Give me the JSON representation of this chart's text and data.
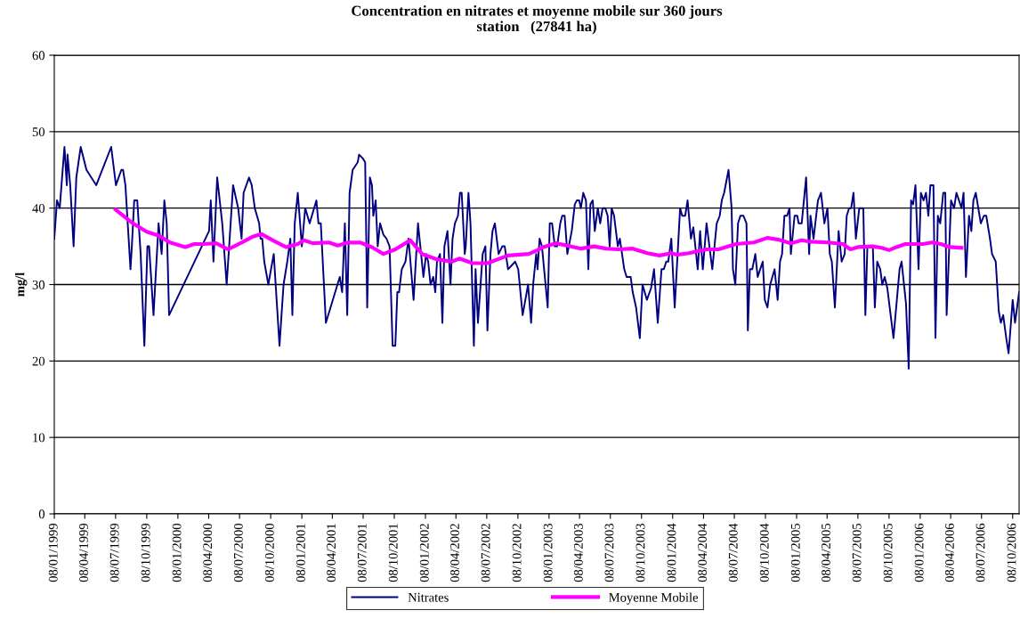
{
  "chart_data": {
    "type": "line",
    "title": "Concentration en nitrates et moyenne mobile sur 360 jours\nstation   (27841 ha)",
    "ylabel": "mg/l",
    "xlim": [
      "1999-01-08",
      "2006-10-27"
    ],
    "ylim": [
      0,
      60
    ],
    "yticks": [
      0,
      10,
      20,
      30,
      40,
      50,
      60
    ],
    "xticks": [
      {
        "value": "1999-01-08",
        "label": "08/01/1999"
      },
      {
        "value": "1999-04-08",
        "label": "08/04/1999"
      },
      {
        "value": "1999-07-08",
        "label": "08/07/1999"
      },
      {
        "value": "1999-10-08",
        "label": "08/10/1999"
      },
      {
        "value": "2000-01-08",
        "label": "08/01/2000"
      },
      {
        "value": "2000-04-08",
        "label": "08/04/2000"
      },
      {
        "value": "2000-07-08",
        "label": "08/07/2000"
      },
      {
        "value": "2000-10-08",
        "label": "08/10/2000"
      },
      {
        "value": "2001-01-08",
        "label": "08/01/2001"
      },
      {
        "value": "2001-04-08",
        "label": "08/04/2001"
      },
      {
        "value": "2001-07-08",
        "label": "08/07/2001"
      },
      {
        "value": "2001-10-08",
        "label": "08/10/2001"
      },
      {
        "value": "2002-01-08",
        "label": "08/01/2002"
      },
      {
        "value": "2002-04-08",
        "label": "08/04/2002"
      },
      {
        "value": "2002-07-08",
        "label": "08/07/2002"
      },
      {
        "value": "2002-10-08",
        "label": "08/10/2002"
      },
      {
        "value": "2003-01-08",
        "label": "08/01/2003"
      },
      {
        "value": "2003-04-08",
        "label": "08/04/2003"
      },
      {
        "value": "2003-07-08",
        "label": "08/07/2003"
      },
      {
        "value": "2003-10-08",
        "label": "08/10/2003"
      },
      {
        "value": "2004-01-08",
        "label": "08/01/2004"
      },
      {
        "value": "2004-04-08",
        "label": "08/04/2004"
      },
      {
        "value": "2004-07-08",
        "label": "08/07/2004"
      },
      {
        "value": "2004-10-08",
        "label": "08/10/2004"
      },
      {
        "value": "2005-01-08",
        "label": "08/01/2005"
      },
      {
        "value": "2005-04-08",
        "label": "08/04/2005"
      },
      {
        "value": "2005-07-08",
        "label": "08/07/2005"
      },
      {
        "value": "2005-10-08",
        "label": "08/10/2005"
      },
      {
        "value": "2006-01-08",
        "label": "08/01/2006"
      },
      {
        "value": "2006-04-08",
        "label": "08/04/2006"
      },
      {
        "value": "2006-07-08",
        "label": "08/07/2006"
      },
      {
        "value": "2006-10-08",
        "label": "08/10/2006"
      }
    ],
    "grid": "y",
    "legend": "bottom",
    "marker": "none",
    "line_style": "solid",
    "series": [
      {
        "name": "Nitrates",
        "color": "#000080",
        "x": [
          "1999-01-08",
          "1999-01-16",
          "1999-01-24",
          "1999-02-07",
          "1999-02-14",
          "1999-02-16",
          "1999-02-24",
          "1999-03-06",
          "1999-03-14",
          "1999-03-27",
          "1999-04-13",
          "1999-05-12",
          "1999-06-25",
          "1999-07-09",
          "1999-07-25",
          "1999-07-30",
          "1999-08-06",
          "1999-08-21",
          "1999-08-25",
          "1999-09-01",
          "1999-09-10",
          "1999-09-20",
          "1999-10-01",
          "1999-10-10",
          "1999-10-15",
          "1999-10-28",
          "1999-11-12",
          "1999-11-21",
          "1999-11-29",
          "1999-12-06",
          "1999-12-13",
          "2000-04-09",
          "2000-04-14",
          "2000-04-22",
          "2000-05-03",
          "2000-05-18",
          "2000-05-31",
          "2000-06-19",
          "2000-07-04",
          "2000-07-14",
          "2000-07-20",
          "2000-08-05",
          "2000-08-13",
          "2000-08-22",
          "2000-09-04",
          "2000-09-08",
          "2000-09-13",
          "2000-09-19",
          "2000-10-01",
          "2000-10-17",
          "2000-11-03",
          "2000-11-15",
          "2000-11-26",
          "2000-12-05",
          "2000-12-11",
          "2000-12-18",
          "2000-12-27",
          "2001-01-08",
          "2001-01-18",
          "2001-01-31",
          "2001-02-20",
          "2001-02-26",
          "2001-03-05",
          "2001-03-20",
          "2001-04-30",
          "2001-05-07",
          "2001-05-15",
          "2001-05-22",
          "2001-05-29",
          "2001-06-07",
          "2001-06-22",
          "2001-06-26",
          "2001-07-07",
          "2001-07-14",
          "2001-07-20",
          "2001-07-28",
          "2001-08-03",
          "2001-08-07",
          "2001-08-14",
          "2001-08-20",
          "2001-08-27",
          "2001-09-06",
          "2001-09-15",
          "2001-09-24",
          "2001-10-03",
          "2001-10-11",
          "2001-10-17",
          "2001-10-22",
          "2001-10-30",
          "2001-11-10",
          "2001-11-19",
          "2001-12-04",
          "2001-12-17",
          "2002-01-02",
          "2002-01-10",
          "2002-01-16",
          "2002-01-23",
          "2002-01-31",
          "2002-02-06",
          "2002-02-11",
          "2002-02-20",
          "2002-02-27",
          "2002-03-05",
          "2002-03-14",
          "2002-03-23",
          "2002-03-29",
          "2002-04-05",
          "2002-04-14",
          "2002-04-20",
          "2002-04-25",
          "2002-05-04",
          "2002-05-07",
          "2002-05-15",
          "2002-05-21",
          "2002-05-31",
          "2002-06-05",
          "2002-06-12",
          "2002-06-26",
          "2002-07-04",
          "2002-07-10",
          "2002-07-19",
          "2002-07-25",
          "2002-08-01",
          "2002-08-12",
          "2002-08-23",
          "2002-08-30",
          "2002-09-09",
          "2002-09-30",
          "2002-10-09",
          "2002-10-22",
          "2002-11-07",
          "2002-11-16",
          "2002-11-22",
          "2002-12-01",
          "2002-12-05",
          "2002-12-11",
          "2002-12-18",
          "2003-01-04",
          "2003-01-10",
          "2003-01-17",
          "2003-01-25",
          "2003-02-01",
          "2003-02-10",
          "2003-02-16",
          "2003-02-23",
          "2003-03-03",
          "2003-03-16",
          "2003-03-25",
          "2003-03-31",
          "2003-04-07",
          "2003-04-12",
          "2003-04-19",
          "2003-04-27",
          "2003-05-04",
          "2003-05-10",
          "2003-05-17",
          "2003-05-23",
          "2003-06-01",
          "2003-06-08",
          "2003-06-15",
          "2003-06-23",
          "2003-06-30",
          "2003-07-06",
          "2003-07-12",
          "2003-07-19",
          "2003-07-30",
          "2003-08-05",
          "2003-08-18",
          "2003-08-25",
          "2003-09-06",
          "2003-09-12",
          "2003-09-22",
          "2003-10-03",
          "2003-10-11",
          "2003-10-24",
          "2003-11-05",
          "2003-11-14",
          "2003-11-25",
          "2003-12-06",
          "2003-12-13",
          "2003-12-20",
          "2003-12-26",
          "2004-01-04",
          "2004-01-14",
          "2004-01-30",
          "2004-02-05",
          "2004-02-14",
          "2004-02-21",
          "2004-03-02",
          "2004-03-09",
          "2004-03-22",
          "2004-03-29",
          "2004-04-06",
          "2004-04-17",
          "2004-05-04",
          "2004-05-17",
          "2004-05-26",
          "2004-06-01",
          "2004-06-08",
          "2004-06-21",
          "2004-06-30",
          "2004-07-04",
          "2004-07-11",
          "2004-07-19",
          "2004-07-26",
          "2004-08-04",
          "2004-08-13",
          "2004-08-17",
          "2004-08-23",
          "2004-08-30",
          "2004-09-08",
          "2004-09-15",
          "2004-09-30",
          "2004-10-06",
          "2004-10-14",
          "2004-10-22",
          "2004-11-04",
          "2004-11-13",
          "2004-11-20",
          "2004-11-26",
          "2004-12-03",
          "2004-12-11",
          "2004-12-18",
          "2004-12-22",
          "2005-01-02",
          "2005-01-10",
          "2005-01-14",
          "2005-01-23",
          "2005-02-05",
          "2005-02-14",
          "2005-02-18",
          "2005-02-27",
          "2005-03-12",
          "2005-03-21",
          "2005-03-31",
          "2005-04-09",
          "2005-04-16",
          "2005-04-22",
          "2005-05-01",
          "2005-05-12",
          "2005-05-21",
          "2005-05-30",
          "2005-06-05",
          "2005-06-12",
          "2005-06-18",
          "2005-06-25",
          "2005-07-02",
          "2005-07-12",
          "2005-07-24",
          "2005-07-30",
          "2005-08-05",
          "2005-08-12",
          "2005-08-21",
          "2005-08-27",
          "2005-09-03",
          "2005-09-12",
          "2005-09-18",
          "2005-09-25",
          "2005-10-03",
          "2005-10-21",
          "2005-11-08",
          "2005-11-14",
          "2005-11-27",
          "2005-12-05",
          "2005-12-12",
          "2005-12-18",
          "2005-12-25",
          "2006-01-03",
          "2006-01-10",
          "2006-01-18",
          "2006-01-25",
          "2006-02-01",
          "2006-02-07",
          "2006-02-16",
          "2006-02-22",
          "2006-03-01",
          "2006-03-08",
          "2006-03-17",
          "2006-03-23",
          "2006-03-27",
          "2006-04-09",
          "2006-04-18",
          "2006-04-25",
          "2006-05-10",
          "2006-05-16",
          "2006-05-23",
          "2006-06-01",
          "2006-06-08",
          "2006-06-14",
          "2006-06-21",
          "2006-07-06",
          "2006-07-15",
          "2006-07-22",
          "2006-08-02",
          "2006-08-08",
          "2006-08-19",
          "2006-08-28",
          "2006-09-03",
          "2006-09-10",
          "2006-09-19",
          "2006-09-26",
          "2006-10-08",
          "2006-10-15",
          "2006-10-27"
        ],
        "values": [
          36,
          41,
          40,
          48,
          43,
          47,
          43,
          35,
          44,
          48,
          45,
          43,
          48,
          43,
          45,
          45,
          43,
          32,
          35,
          41,
          41,
          34,
          22,
          35,
          35,
          26,
          38,
          34,
          41,
          38,
          26,
          37,
          41,
          33,
          44,
          38,
          30,
          43,
          40,
          36,
          42,
          44,
          43,
          40,
          38,
          36,
          36,
          33,
          30,
          34,
          22,
          30,
          33,
          36,
          26,
          38,
          42,
          35,
          40,
          38,
          41,
          38,
          38,
          25,
          31,
          29,
          38,
          26,
          42,
          45,
          46,
          47,
          46.5,
          46,
          27,
          44,
          43,
          39,
          41,
          35,
          38,
          36.5,
          36,
          35,
          22,
          22,
          29,
          29,
          32,
          33,
          36,
          28,
          38,
          31,
          34,
          33,
          30,
          31,
          29,
          33,
          34,
          25,
          35,
          37,
          30,
          36,
          38,
          39,
          42,
          42,
          34,
          35,
          42,
          38,
          22,
          32,
          25,
          34,
          35,
          24,
          34,
          37,
          38,
          34,
          35,
          35,
          32,
          33,
          32,
          26,
          30,
          25,
          30,
          34,
          32,
          36,
          35,
          27,
          38,
          38,
          35,
          35,
          38,
          39,
          39,
          34,
          37,
          40.5,
          41,
          41,
          40,
          42,
          41,
          32,
          40.5,
          41,
          37,
          40,
          38,
          40,
          40,
          39,
          35,
          40,
          39,
          35,
          36,
          32,
          31,
          31,
          29,
          27,
          23,
          30,
          28,
          29.5,
          32,
          25,
          32,
          32,
          33,
          33,
          36,
          27,
          40,
          39,
          39,
          41,
          36,
          37.5,
          32,
          37,
          32,
          38,
          32,
          38,
          39,
          41,
          42,
          45,
          40,
          32,
          30,
          38,
          39,
          39,
          38,
          24,
          32,
          32,
          34,
          31,
          33,
          28,
          27,
          30,
          32,
          28,
          33,
          34,
          39,
          39,
          40,
          34,
          39,
          39,
          38,
          38,
          44,
          34,
          39,
          36,
          41,
          42,
          38,
          40,
          34,
          33,
          27,
          37,
          33,
          34,
          39,
          40,
          40,
          42,
          36,
          40,
          40,
          26,
          35,
          35,
          35,
          27,
          33,
          32,
          30,
          31,
          29.5,
          23,
          32,
          33,
          27.5,
          19,
          41,
          40.5,
          43,
          32,
          42,
          41,
          42,
          39,
          43,
          43,
          23,
          39,
          38,
          42,
          42,
          26,
          41,
          40,
          42,
          40,
          42,
          31,
          39,
          37,
          41,
          42,
          38,
          39,
          39,
          36,
          34,
          33,
          26.5,
          25,
          26,
          23,
          21,
          28,
          25,
          29
        ]
      },
      {
        "name": "Moyenne Mobile",
        "color": "#ff00ff",
        "x": [
          "1999-07-08",
          "1999-08-25",
          "1999-10-08",
          "1999-11-12",
          "1999-12-16",
          "2000-01-30",
          "2000-02-25",
          "2000-03-23",
          "2000-04-30",
          "2000-06-04",
          "2000-07-14",
          "2000-08-18",
          "2000-09-11",
          "2000-10-18",
          "2000-11-22",
          "2000-12-27",
          "2001-01-14",
          "2001-02-09",
          "2001-03-29",
          "2001-04-24",
          "2001-05-25",
          "2001-06-29",
          "2001-08-03",
          "2001-09-06",
          "2001-10-11",
          "2001-11-24",
          "2001-12-29",
          "2002-02-11",
          "2002-03-27",
          "2002-04-18",
          "2002-05-27",
          "2002-07-10",
          "2002-09-09",
          "2002-11-09",
          "2002-12-05",
          "2002-12-22",
          "2003-01-27",
          "2003-03-03",
          "2003-04-12",
          "2003-05-21",
          "2003-06-25",
          "2003-07-30",
          "2003-09-12",
          "2003-10-25",
          "2003-11-30",
          "2004-01-04",
          "2004-01-21",
          "2004-02-25",
          "2004-04-17",
          "2004-05-22",
          "2004-07-13",
          "2004-09-04",
          "2004-10-13",
          "2004-11-13",
          "2004-12-22",
          "2005-01-23",
          "2005-02-18",
          "2005-04-11",
          "2005-05-25",
          "2005-06-16",
          "2005-07-08",
          "2005-08-21",
          "2005-09-16",
          "2005-10-08",
          "2005-10-30",
          "2005-11-25",
          "2006-01-16",
          "2006-02-12",
          "2006-03-10",
          "2006-04-05",
          "2006-05-10"
        ],
        "values": [
          39.8,
          38.1,
          36.9,
          36.4,
          35.5,
          34.9,
          35.3,
          35.3,
          35.4,
          34.6,
          35.5,
          36.3,
          36.6,
          35.7,
          34.9,
          35.3,
          35.8,
          35.4,
          35.5,
          35.1,
          35.5,
          35.5,
          34.9,
          34,
          34.6,
          35.8,
          34,
          33.3,
          33,
          33.4,
          32.8,
          32.8,
          33.8,
          34,
          34.5,
          34.9,
          35.4,
          35.1,
          34.7,
          35,
          34.7,
          34.6,
          34.7,
          34.1,
          33.8,
          34.1,
          33.9,
          34.1,
          34.6,
          34.6,
          35.3,
          35.5,
          36.1,
          35.9,
          35.4,
          35.8,
          35.6,
          35.5,
          35.3,
          34.6,
          34.9,
          35,
          34.8,
          34.5,
          34.9,
          35.3,
          35.3,
          35.5,
          35.3,
          34.9,
          34.8
        ]
      }
    ]
  }
}
